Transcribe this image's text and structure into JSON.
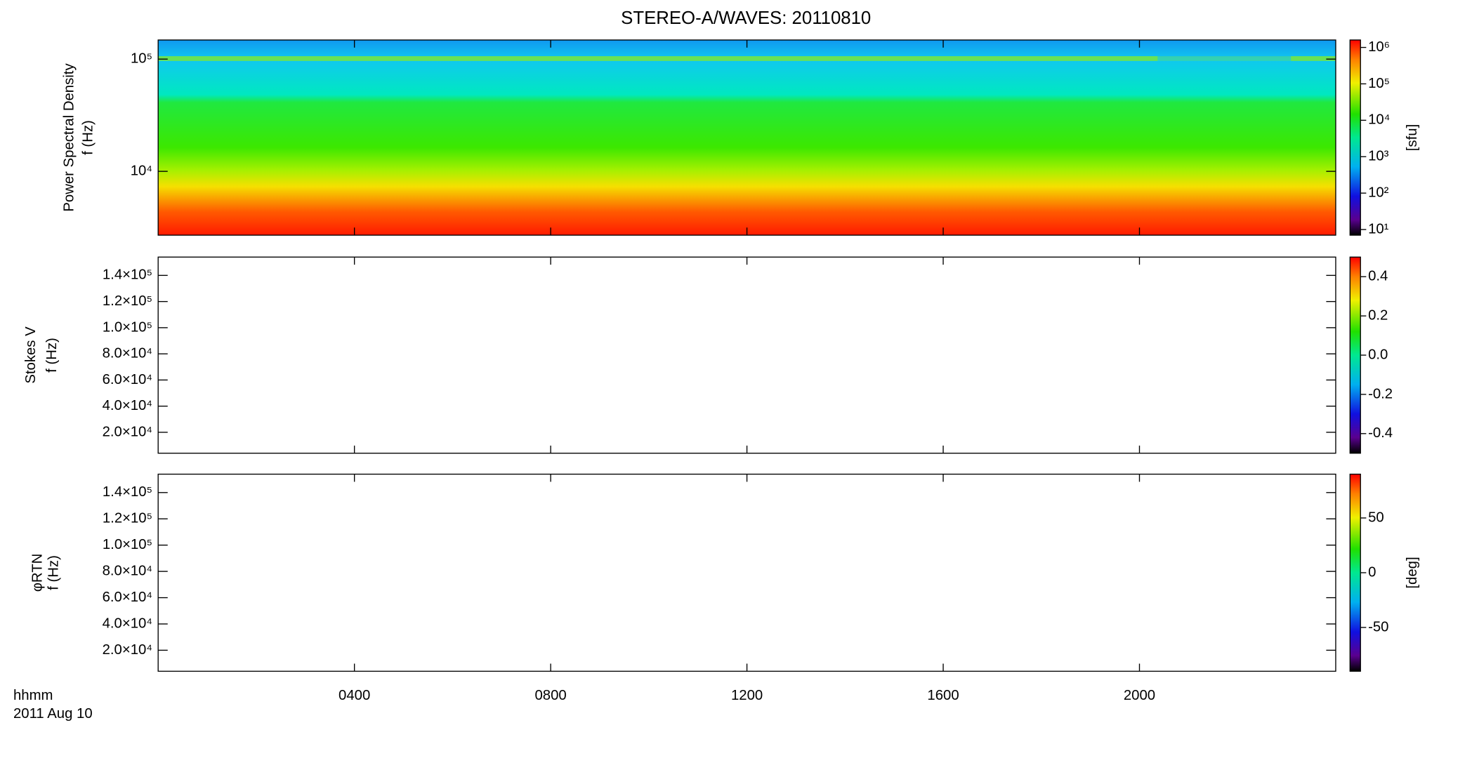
{
  "title": "STEREO-A/WAVES: 20110810",
  "time_label": "hhmm",
  "date_label": "2011 Aug 10",
  "chart_data": [
    {
      "type": "spectrogram",
      "ylabel": [
        "Power Spectral Density",
        "f (Hz)"
      ],
      "ylog": true,
      "ylim": [
        2700,
        148000
      ],
      "yticks": [
        {
          "value": 10000,
          "label": "10⁴"
        },
        {
          "value": 100000,
          "label": "10⁵"
        }
      ],
      "xlim": [
        0,
        24
      ],
      "xticks": [
        {
          "value": 4,
          "label": "0400"
        },
        {
          "value": 8,
          "label": "0800"
        },
        {
          "value": 12,
          "label": "1200"
        },
        {
          "value": 16,
          "label": "1600"
        },
        {
          "value": 20,
          "label": "2000"
        }
      ],
      "colorbar": {
        "log": true,
        "lim": [
          7,
          1600000
        ],
        "label": "[sfu]",
        "ticks": [
          {
            "value": 10,
            "label": "10¹"
          },
          {
            "value": 100,
            "label": "10²"
          },
          {
            "value": 1000,
            "label": "10³"
          },
          {
            "value": 10000,
            "label": "10⁴"
          },
          {
            "value": 100000,
            "label": "10⁵"
          },
          {
            "value": 1000000,
            "label": "10⁶"
          }
        ]
      }
    },
    {
      "type": "spectrogram",
      "ylabel": [
        "Stokes V",
        "f (Hz)"
      ],
      "ylog": false,
      "ylim": [
        4000,
        154000
      ],
      "yticks": [
        {
          "value": 20000,
          "label": "2.0×10⁴"
        },
        {
          "value": 40000,
          "label": "4.0×10⁴"
        },
        {
          "value": 60000,
          "label": "6.0×10⁴"
        },
        {
          "value": 80000,
          "label": "8.0×10⁴"
        },
        {
          "value": 100000,
          "label": "1.0×10⁵"
        },
        {
          "value": 120000,
          "label": "1.2×10⁵"
        },
        {
          "value": 140000,
          "label": "1.4×10⁵"
        }
      ],
      "xlim": [
        0,
        24
      ],
      "xticks": [
        {
          "value": 4,
          "label": "0400"
        },
        {
          "value": 8,
          "label": "0800"
        },
        {
          "value": 12,
          "label": "1200"
        },
        {
          "value": 16,
          "label": "1600"
        },
        {
          "value": 20,
          "label": "2000"
        }
      ],
      "colorbar": {
        "log": false,
        "lim": [
          -0.5,
          0.5
        ],
        "ticks": [
          {
            "value": -0.4,
            "label": "-0.4"
          },
          {
            "value": -0.2,
            "label": "-0.2"
          },
          {
            "value": 0,
            "label": "0.0"
          },
          {
            "value": 0.2,
            "label": "0.2"
          },
          {
            "value": 0.4,
            "label": "0.4"
          }
        ]
      }
    },
    {
      "type": "spectrogram",
      "ylabel": [
        "φRTN",
        "f (Hz)"
      ],
      "ylog": false,
      "ylim": [
        4000,
        154000
      ],
      "yticks": [
        {
          "value": 20000,
          "label": "2.0×10⁴"
        },
        {
          "value": 40000,
          "label": "4.0×10⁴"
        },
        {
          "value": 60000,
          "label": "6.0×10⁴"
        },
        {
          "value": 80000,
          "label": "8.0×10⁴"
        },
        {
          "value": 100000,
          "label": "1.0×10⁵"
        },
        {
          "value": 120000,
          "label": "1.2×10⁵"
        },
        {
          "value": 140000,
          "label": "1.4×10⁵"
        }
      ],
      "xlim": [
        0,
        24
      ],
      "xticks": [
        {
          "value": 4,
          "label": "0400"
        },
        {
          "value": 8,
          "label": "0800"
        },
        {
          "value": 12,
          "label": "1200"
        },
        {
          "value": 16,
          "label": "1600"
        },
        {
          "value": 20,
          "label": "2000"
        }
      ],
      "colorbar": {
        "log": false,
        "lim": [
          -90,
          90
        ],
        "label": "[deg]",
        "ticks": [
          -50,
          0,
          50
        ]
      }
    }
  ]
}
